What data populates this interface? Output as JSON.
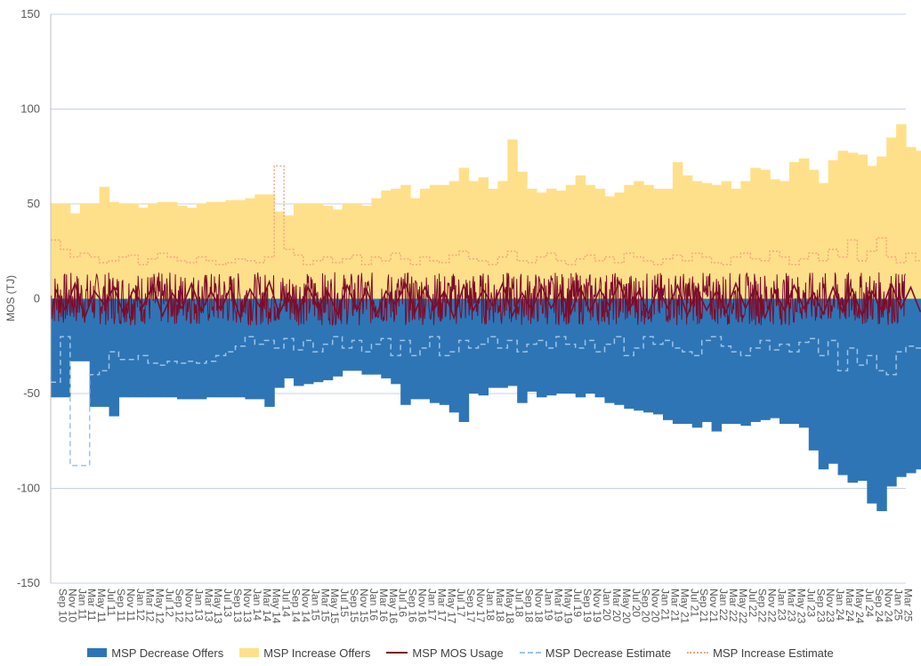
{
  "chart_data": {
    "type": "bar",
    "title": "",
    "xlabel": "",
    "ylabel": "MOS (TJ)",
    "ylim": [
      -150,
      150
    ],
    "yticks": [
      150,
      100,
      50,
      0,
      -50,
      -100,
      -150
    ],
    "grid": true,
    "legend_position": "bottom",
    "colors": {
      "decrease": "#2e75b6",
      "increase": "#ffe08a",
      "usage": "#7b0c2b",
      "decrease_estimate": "#9dc3e6",
      "increase_estimate": "#f4a582",
      "grid": "#c8d0e8",
      "axis": "#bfbfbf"
    },
    "x_labels": [
      "Sep 10",
      "Nov 10",
      "Jan 11",
      "Mar 11",
      "May 11",
      "Jul 11",
      "Sep 11",
      "Nov 11",
      "Jan 12",
      "Mar 12",
      "May 12",
      "Jul 12",
      "Sep 12",
      "Nov 12",
      "Jan 13",
      "Mar 13",
      "May 13",
      "Jul 13",
      "Sep 13",
      "Nov 13",
      "Jan 14",
      "Mar 14",
      "May 14",
      "Jul 14",
      "Sep 14",
      "Nov 14",
      "Jan 15",
      "Mar 15",
      "May 15",
      "Jul 15",
      "Sep 15",
      "Nov 15",
      "Jan 16",
      "Mar 16",
      "May 16",
      "Jul 16",
      "Sep 16",
      "Nov 16",
      "Jan 17",
      "Mar 17",
      "May 17",
      "Jul 17",
      "Sep 17",
      "Nov 17",
      "Jan 18",
      "Mar 18",
      "May 18",
      "Jul 18",
      "Sep 18",
      "Nov 18",
      "Jan 19",
      "Mar 19",
      "May 19",
      "Jul 19",
      "Sep 19",
      "Nov 19",
      "Jan 20",
      "Mar 20",
      "May 20",
      "Jul 20",
      "Sep 20",
      "Nov 20",
      "Jan 21",
      "Mar 21",
      "May 21",
      "Jul 21",
      "Sep 21",
      "Nov 21",
      "Jan 22",
      "Mar 22",
      "May 22",
      "Jul 22",
      "Sep 22",
      "Nov 22",
      "Jan 23",
      "Mar 23",
      "May 23",
      "Jul 23",
      "Sep 23",
      "Nov 23",
      "Jan 24",
      "Mar 24",
      "May 24",
      "Jul 24",
      "Sep 24",
      "Nov 24",
      "Jan 25",
      "Mar 25"
    ],
    "series": [
      {
        "name": "MSP Decrease Offers",
        "kind": "bar",
        "values": [
          -52,
          -52,
          -33,
          -33,
          -57,
          -57,
          -62,
          -52,
          -52,
          -52,
          -52,
          -52,
          -52,
          -53,
          -53,
          -53,
          -52,
          -52,
          -52,
          -52,
          -53,
          -53,
          -57,
          -47,
          -42,
          -46,
          -45,
          -44,
          -43,
          -41,
          -38,
          -38,
          -40,
          -40,
          -42,
          -45,
          -56,
          -53,
          -53,
          -55,
          -56,
          -60,
          -65,
          -50,
          -51,
          -47,
          -47,
          -46,
          -55,
          -49,
          -52,
          -51,
          -50,
          -50,
          -52,
          -50,
          -52,
          -55,
          -56,
          -58,
          -59,
          -60,
          -61,
          -64,
          -66,
          -66,
          -68,
          -65,
          -70,
          -66,
          -66,
          -67,
          -65,
          -64,
          -63,
          -66,
          -66,
          -68,
          -80,
          -90,
          -87,
          -93,
          -97,
          -96,
          -108,
          -112,
          -99,
          -94,
          -92,
          -90
        ]
      },
      {
        "name": "MSP Increase Offers",
        "kind": "bar",
        "values": [
          50,
          50,
          45,
          50,
          50,
          59,
          51,
          50,
          50,
          48,
          50,
          51,
          51,
          49,
          48,
          50,
          51,
          51,
          52,
          52,
          53,
          55,
          55,
          46,
          44,
          50,
          50,
          50,
          49,
          47,
          50,
          50,
          49,
          53,
          57,
          58,
          60,
          53,
          58,
          60,
          60,
          62,
          69,
          62,
          64,
          58,
          62,
          84,
          67,
          58,
          56,
          58,
          57,
          60,
          65,
          60,
          58,
          54,
          56,
          60,
          62,
          60,
          58,
          58,
          72,
          65,
          62,
          61,
          60,
          62,
          58,
          62,
          69,
          68,
          63,
          62,
          72,
          74,
          68,
          61,
          73,
          78,
          77,
          76,
          70,
          75,
          85,
          92,
          80,
          78
        ]
      },
      {
        "name": "MSP MOS Usage",
        "kind": "line",
        "values": [
          5,
          -6,
          8,
          -10,
          4,
          -3,
          6,
          -8,
          5,
          -4,
          7,
          -9,
          3,
          -5,
          8,
          -7,
          4,
          -6,
          6,
          -10,
          5,
          -4,
          9,
          -8,
          3,
          -7,
          6,
          -5,
          4,
          -8,
          7,
          -6,
          5,
          -9,
          4,
          -3,
          8,
          -7,
          6,
          -5,
          4,
          -10,
          7,
          -6,
          5,
          -4,
          8,
          -9,
          3,
          -6,
          7,
          -5,
          4,
          -8,
          6,
          -7,
          5,
          -4,
          9,
          -6,
          4,
          -8,
          6,
          -5,
          7,
          -9,
          5,
          -6,
          4,
          -7,
          8,
          -5,
          6,
          -10,
          4,
          -6,
          7,
          -5,
          3,
          -8,
          6,
          -7,
          5,
          -9,
          4,
          -6,
          8,
          -5,
          6,
          -7
        ]
      },
      {
        "name": "MSP Decrease Estimate",
        "kind": "line",
        "dash": "6,4",
        "values": [
          -44,
          -20,
          -88,
          -88,
          -40,
          -38,
          -28,
          -32,
          -32,
          -30,
          -34,
          -35,
          -33,
          -34,
          -33,
          -34,
          -33,
          -30,
          -28,
          -25,
          -20,
          -24,
          -22,
          -26,
          -21,
          -27,
          -22,
          -28,
          -24,
          -20,
          -26,
          -22,
          -28,
          -24,
          -21,
          -30,
          -22,
          -30,
          -26,
          -20,
          -30,
          -28,
          -22,
          -26,
          -24,
          -20,
          -26,
          -22,
          -28,
          -24,
          -22,
          -26,
          -20,
          -24,
          -26,
          -22,
          -28,
          -24,
          -20,
          -30,
          -26,
          -20,
          -24,
          -22,
          -26,
          -28,
          -30,
          -22,
          -20,
          -25,
          -28,
          -30,
          -26,
          -22,
          -27,
          -24,
          -28,
          -23,
          -21,
          -30,
          -22,
          -38,
          -26,
          -35,
          -30,
          -38,
          -40,
          -28,
          -25,
          -26
        ]
      },
      {
        "name": "MSP Increase Estimate",
        "kind": "line",
        "dash": "2,2",
        "values": [
          31,
          26,
          22,
          24,
          22,
          19,
          20,
          22,
          23,
          18,
          21,
          24,
          22,
          20,
          19,
          22,
          20,
          18,
          19,
          21,
          20,
          19,
          22,
          70,
          26,
          23,
          18,
          20,
          22,
          19,
          21,
          23,
          18,
          22,
          20,
          24,
          21,
          18,
          22,
          20,
          19,
          23,
          25,
          21,
          20,
          18,
          22,
          25,
          20,
          19,
          22,
          24,
          20,
          18,
          21,
          23,
          20,
          22,
          19,
          24,
          22,
          20,
          18,
          21,
          23,
          20,
          24,
          22,
          19,
          18,
          22,
          24,
          21,
          20,
          25,
          22,
          18,
          21,
          24,
          20,
          26,
          22,
          31,
          20,
          25,
          32,
          22,
          19,
          24,
          20
        ]
      }
    ]
  },
  "legend": [
    {
      "label": "MSP Decrease Offers",
      "type": "box",
      "color": "#2e75b6"
    },
    {
      "label": "MSP Increase Offers",
      "type": "box",
      "color": "#ffe08a"
    },
    {
      "label": "MSP MOS Usage",
      "type": "solid",
      "color": "#7b0c2b"
    },
    {
      "label": "MSP Decrease Estimate",
      "type": "dashed",
      "color": "#9dc3e6"
    },
    {
      "label": "MSP Increase Estimate",
      "type": "dotted",
      "color": "#f4a582"
    }
  ]
}
